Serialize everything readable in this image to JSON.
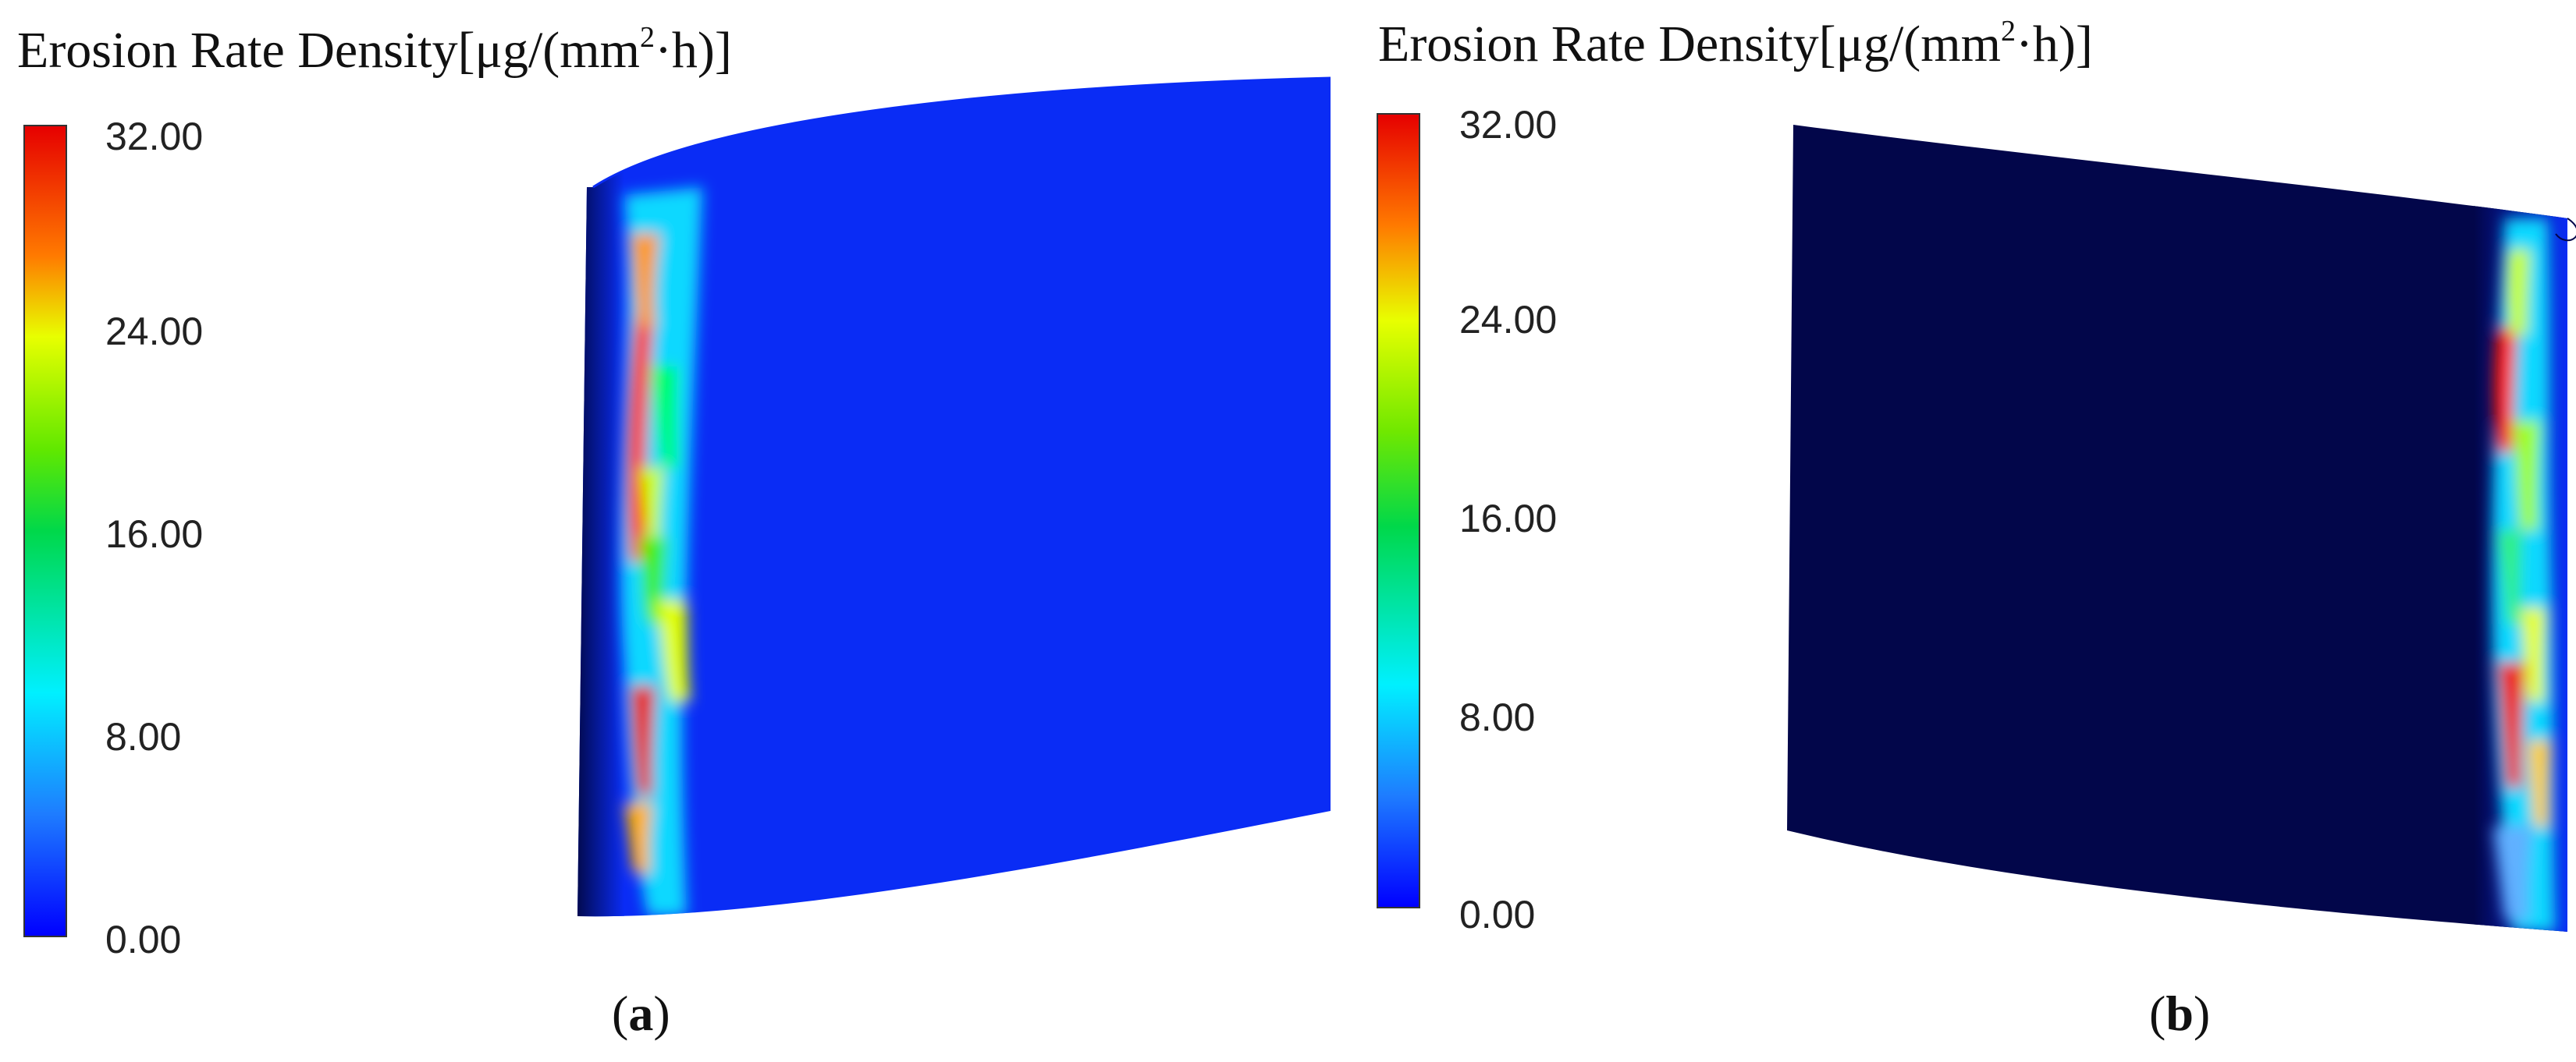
{
  "figure": {
    "panels": [
      {
        "id": "a",
        "label_open": "(",
        "label_letter": "a",
        "label_close": ")",
        "legend": {
          "title_main": "Erosion Rate Density[μg/(mm",
          "title_sup": "2",
          "title_end": "·h)]",
          "ticks": [
            "32.00",
            "24.00",
            "16.00",
            "8.00",
            "0.00"
          ]
        },
        "surface_base_color": "#0a2cf5",
        "erosion_band_side": "left"
      },
      {
        "id": "b",
        "label_open": "(",
        "label_letter": "b",
        "label_close": ")",
        "legend": {
          "title_main": "Erosion Rate Density[μg/(mm",
          "title_sup": "2",
          "title_end": "·h)]",
          "ticks": [
            "32.00",
            "24.00",
            "16.00",
            "8.00",
            "0.00"
          ]
        },
        "surface_base_color": "#02064a",
        "erosion_band_side": "right"
      }
    ],
    "colormap": [
      "#ff0000",
      "#ff8800",
      "#ffff00",
      "#00e000",
      "#00ffff",
      "#0000ff"
    ],
    "value_range": [
      0,
      32
    ]
  }
}
